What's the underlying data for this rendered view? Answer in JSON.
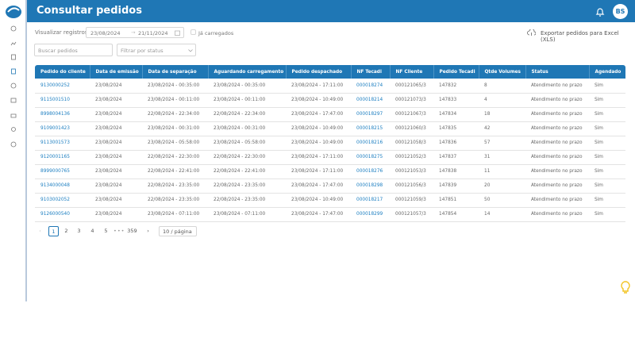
{
  "header": {
    "title": "Consultar pedidos",
    "user_initials": "BS"
  },
  "filters": {
    "view_label": "Visualizar registros",
    "date_from": "23/08/2024",
    "date_to": "21/11/2024",
    "loaded_checkbox": "Já carregados",
    "export_button": "Exportar pedidos para Excel (XLS)",
    "search_placeholder": "Buscar pedidos",
    "status_placeholder": "Filtrar por status"
  },
  "table": {
    "columns": [
      "Pedido do cliente",
      "Data de emissão",
      "Data de separação",
      "Aguardando carregamento",
      "Pedido despachado",
      "NF Tecadi",
      "NF Cliente",
      "Pedido Tecadi",
      "Qtde Volumes",
      "Status",
      "Agendado"
    ],
    "rows": [
      [
        "9130000252",
        "23/08/2024",
        "23/08/2024 - 00:35:00",
        "23/08/2024 - 00:35:00",
        "23/08/2024 - 17:11:00",
        "000018274",
        "000121065/3",
        "147832",
        "8",
        "Atendimento no prazo",
        "Sim"
      ],
      [
        "9115001510",
        "23/08/2024",
        "23/08/2024 - 00:11:00",
        "23/08/2024 - 00:11:00",
        "23/08/2024 - 10:49:00",
        "000018214",
        "000121073/3",
        "147833",
        "4",
        "Atendimento no prazo",
        "Sim"
      ],
      [
        "8998004136",
        "23/08/2024",
        "22/08/2024 - 22:34:00",
        "22/08/2024 - 22:34:00",
        "23/08/2024 - 17:47:00",
        "000018297",
        "000121067/3",
        "147834",
        "18",
        "Atendimento no prazo",
        "Sim"
      ],
      [
        "9109001423",
        "23/08/2024",
        "23/08/2024 - 00:31:00",
        "23/08/2024 - 00:31:00",
        "23/08/2024 - 10:49:00",
        "000018215",
        "000121060/3",
        "147835",
        "42",
        "Atendimento no prazo",
        "Sim"
      ],
      [
        "9113001573",
        "23/08/2024",
        "23/08/2024 - 05:58:00",
        "23/08/2024 - 05:58:00",
        "23/08/2024 - 10:49:00",
        "000018216",
        "000121058/3",
        "147836",
        "57",
        "Atendimento no prazo",
        "Sim"
      ],
      [
        "9120001165",
        "23/08/2024",
        "22/08/2024 - 22:30:00",
        "22/08/2024 - 22:30:00",
        "23/08/2024 - 17:11:00",
        "000018275",
        "000121052/3",
        "147837",
        "31",
        "Atendimento no prazo",
        "Sim"
      ],
      [
        "8999000765",
        "23/08/2024",
        "22/08/2024 - 22:41:00",
        "22/08/2024 - 22:41:00",
        "23/08/2024 - 17:11:00",
        "000018276",
        "000121053/3",
        "147838",
        "11",
        "Atendimento no prazo",
        "Sim"
      ],
      [
        "9134000048",
        "23/08/2024",
        "22/08/2024 - 23:35:00",
        "22/08/2024 - 23:35:00",
        "23/08/2024 - 17:47:00",
        "000018298",
        "000121056/3",
        "147839",
        "20",
        "Atendimento no prazo",
        "Sim"
      ],
      [
        "9103002052",
        "23/08/2024",
        "22/08/2024 - 23:35:00",
        "22/08/2024 - 23:35:00",
        "23/08/2024 - 10:49:00",
        "000018217",
        "000121059/3",
        "147851",
        "50",
        "Atendimento no prazo",
        "Sim"
      ],
      [
        "9126000540",
        "23/08/2024",
        "23/08/2024 - 07:11:00",
        "23/08/2024 - 07:11:00",
        "23/08/2024 - 17:47:00",
        "000018299",
        "000121057/3",
        "147854",
        "14",
        "Atendimento no prazo",
        "Sim"
      ]
    ]
  },
  "pagination": {
    "pages": [
      "1",
      "2",
      "3",
      "4",
      "5"
    ],
    "last_page": "359",
    "page_size": "10 / página"
  }
}
